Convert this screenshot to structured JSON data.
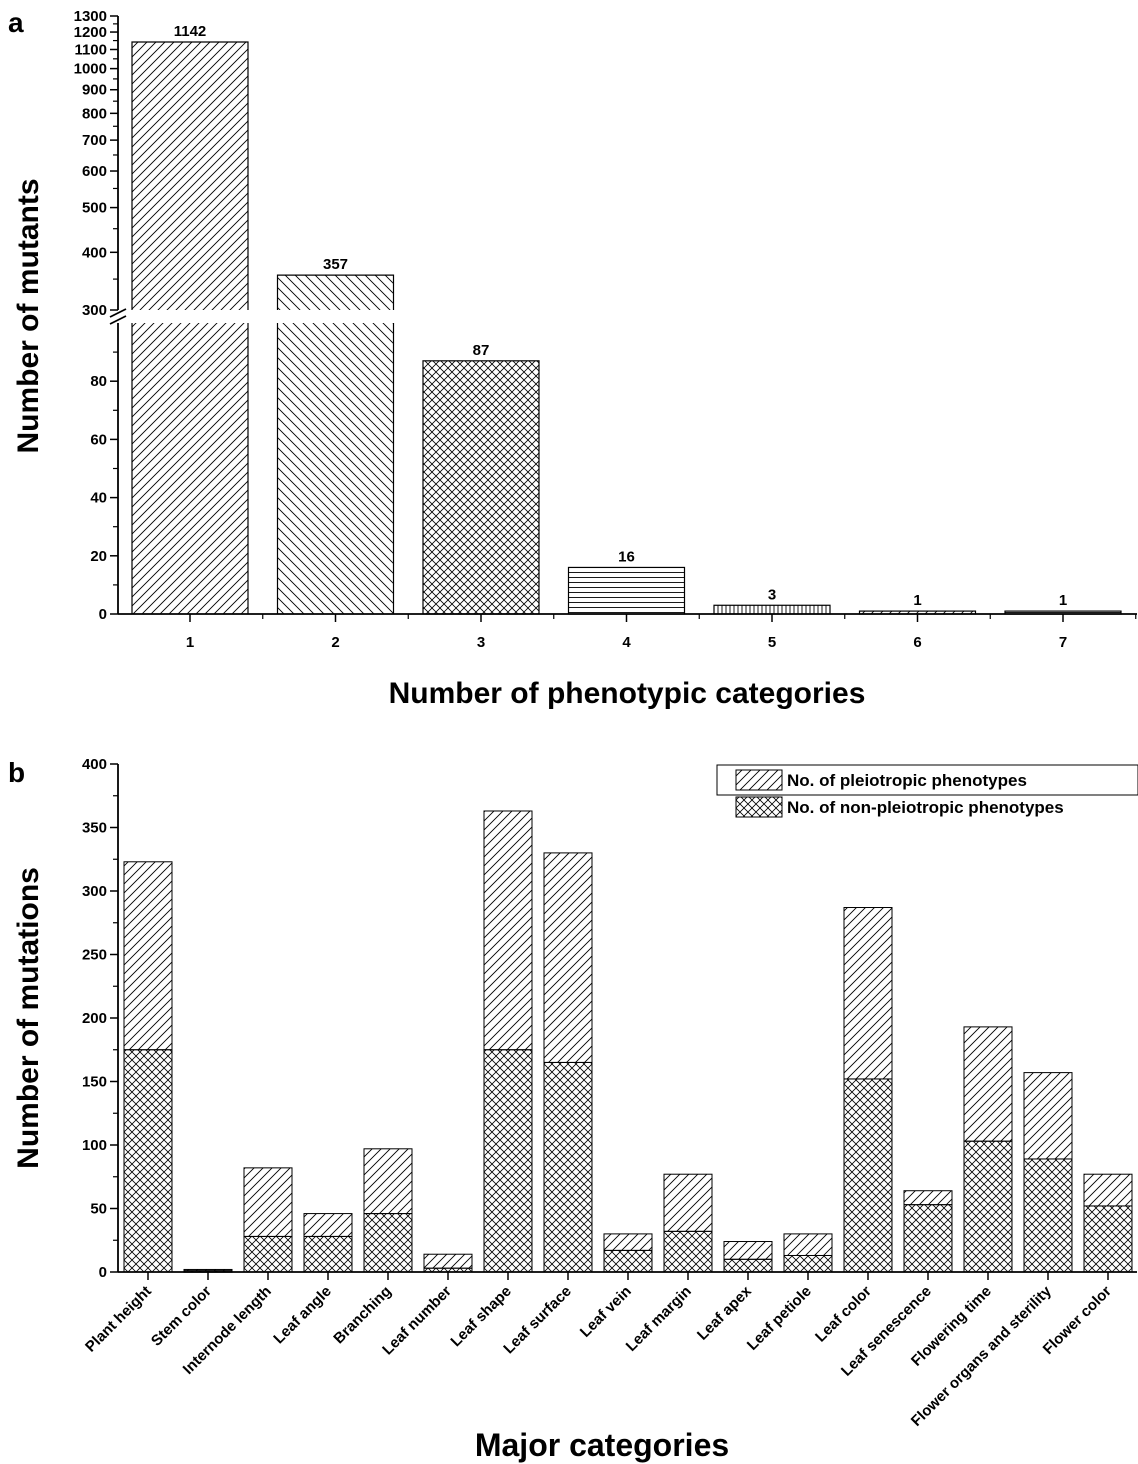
{
  "chart_data": [
    {
      "panel_label": "a",
      "type": "bar",
      "xlabel": "Number of phenotypic categories",
      "ylabel": "Number of mutants",
      "categories": [
        "1",
        "2",
        "3",
        "4",
        "5",
        "6",
        "7"
      ],
      "values": [
        1142,
        357,
        87,
        16,
        3,
        1,
        1
      ],
      "data_labels": [
        "1142",
        "357",
        "87",
        "16",
        "3",
        "1",
        "1"
      ],
      "patterns": [
        "diag-right",
        "diag-left",
        "crosshatch",
        "horizontal",
        "vertical",
        "diag-right",
        "horizontal"
      ],
      "y_axis_break": {
        "lower_range": [
          0,
          100
        ],
        "upper_range": [
          300,
          1300
        ]
      },
      "lower_ticks": [
        "0",
        "20",
        "40",
        "60",
        "80"
      ],
      "upper_ticks": [
        "300",
        "400",
        "500",
        "600",
        "700",
        "800",
        "900",
        "1000",
        "1100",
        "1200",
        "1300"
      ],
      "grid": false
    },
    {
      "panel_label": "b",
      "type": "bar",
      "stacked": true,
      "xlabel": "Major categories",
      "ylabel": "Number of mutations",
      "ylim": [
        0,
        400
      ],
      "yticks": [
        "0",
        "50",
        "100",
        "150",
        "200",
        "250",
        "300",
        "350",
        "400"
      ],
      "categories": [
        "Plant height",
        "Stem color",
        "Internode length",
        "Leaf angle",
        "Branching",
        "Leaf number",
        "Leaf shape",
        "Leaf surface",
        "Leaf vein",
        "Leaf margin",
        "Leaf apex",
        "Leaf petiole",
        "Leaf color",
        "Leaf senescence",
        "Flowering time",
        "Flower organs and sterility",
        "Flower color"
      ],
      "series": [
        {
          "name": "No. of non-pleiotropic phenotypes",
          "pattern": "crosshatch",
          "values": [
            175,
            1,
            28,
            28,
            46,
            3,
            175,
            165,
            17,
            32,
            10,
            13,
            152,
            53,
            103,
            89,
            52
          ]
        },
        {
          "name": "No. of pleiotropic phenotypes",
          "pattern": "diag-right",
          "values": [
            148,
            1,
            54,
            18,
            51,
            11,
            188,
            165,
            13,
            45,
            14,
            17,
            135,
            11,
            90,
            68,
            25
          ]
        }
      ],
      "legend": {
        "position": "top-right",
        "entries": [
          "No. of pleiotropic phenotypes",
          "No. of non-pleiotropic phenotypes"
        ]
      },
      "grid": false
    }
  ]
}
